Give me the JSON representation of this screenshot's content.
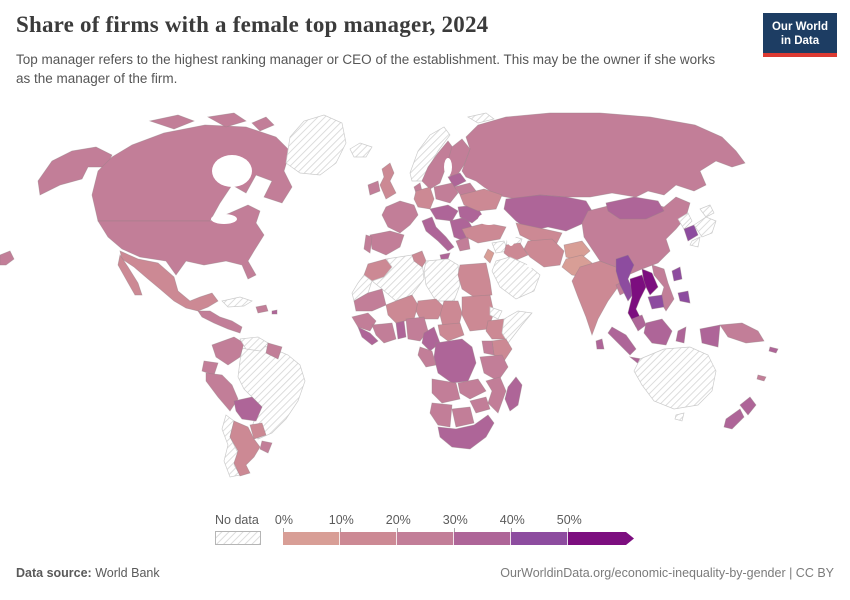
{
  "header": {
    "title": "Share of firms with a female top manager, 2024",
    "subtitle": "Top manager refers to the highest ranking manager or CEO of the establishment. This may be the owner if she works as the manager of the firm.",
    "logo": {
      "line1": "Our World",
      "line2": "in Data",
      "bg_color": "#1d3d63",
      "accent_color": "#dc3a32"
    }
  },
  "legend": {
    "no_data_label": "No data",
    "tick_labels": [
      "0%",
      "10%",
      "20%",
      "30%",
      "40%",
      "50%"
    ],
    "bin_colors": [
      "#d89e96",
      "#cc8994",
      "#c27e98",
      "#ae6598",
      "#8d4c9f",
      "#7c0e7f"
    ]
  },
  "footer": {
    "source_label": "Data source:",
    "source_value": "World Bank",
    "credit": "OurWorldinData.org/economic-inequality-by-gender | CC BY"
  },
  "map": {
    "border_color": "#9b8288",
    "no_data_border_color": "#c9c9c9",
    "ocean_color": "#ffffff",
    "regions": {
      "alaska": 2,
      "canada": 2,
      "arctic-island-1": 2,
      "arctic-island-2": 2,
      "arctic-island-3": 2,
      "greenland": "nd",
      "usa": 2,
      "mexico": 1,
      "baja": 1,
      "central-america": 2,
      "cuba": "nd",
      "hispaniola": 2,
      "puerto-rico": 3,
      "colombia": 2,
      "venezuela": "nd",
      "guyanas": 2,
      "ecuador": 2,
      "brazil": "nd",
      "peru": 2,
      "bolivia": 3,
      "paraguay": 1,
      "chile": "nd",
      "argentina": 1,
      "uruguay": 2,
      "chukotka-sliver": 2,
      "svalbard": "nd",
      "iceland": "nd",
      "ireland": 2,
      "uk": 1,
      "norway": "nd",
      "sweden": 2,
      "finland": 2,
      "baltics": 3,
      "denmark": 2,
      "belarus": 2,
      "russia": 2,
      "germany": 1,
      "poland": 2,
      "france": 2,
      "spain": 2,
      "portugal": 2,
      "czech-austria": 3,
      "italy": 3,
      "sicily": 3,
      "balkans": 3,
      "greece": 2,
      "romania": 3,
      "ukraine": 1,
      "kazakhstan": 3,
      "central-asia": 1,
      "turkmenistan": "nd",
      "turkey": 1,
      "syria": "nd",
      "israel-jordan": 0,
      "iraq": 1,
      "iran": 1,
      "arabia": "nd",
      "afghanistan": 0,
      "pakistan": 0,
      "india": 1,
      "bangladesh": 2,
      "sri-lanka": 3,
      "china": 2,
      "mongolia": 3,
      "north-korea": "nd",
      "south-korea": 4,
      "japan": "nd",
      "myanmar": 4,
      "thailand": 5,
      "laos": 5,
      "vietnam": 2,
      "cambodia": 4,
      "malaysia": 3,
      "sumatra": 3,
      "java": 3,
      "borneo": 3,
      "sulawesi": 3,
      "philippines": 4,
      "papua-west": 3,
      "png": 2,
      "solomons": 3,
      "new-caledonia": 2,
      "australia": "nd",
      "tasmania": "nd",
      "new-zealand": 3,
      "morocco": 1,
      "western-sahara": "nd",
      "algeria": "nd",
      "tunisia": 1,
      "libya": "nd",
      "egypt": 1,
      "mauritania": 2,
      "mali": 1,
      "niger": 1,
      "chad": 1,
      "sudan": 1,
      "eritrea": "nd",
      "ethiopia": 1,
      "somalia": "nd",
      "kenya": 1,
      "uganda": 2,
      "senegal-guinea": 2,
      "sierra-liberia": 3,
      "ivory-ghana": 2,
      "togo-benin": 3,
      "nigeria": 2,
      "cameroon": 3,
      "car": 1,
      "gabon-congo": 2,
      "drc": 3,
      "tanzania": 2,
      "angola": 2,
      "zambia": 2,
      "mozambique": 2,
      "zimbabwe": 2,
      "namibia": 2,
      "botswana": 2,
      "south-africa": 3,
      "madagascar": 3
    }
  },
  "chart_data": {
    "type": "heatmap",
    "subtype": "world-choropleth",
    "title": "Share of firms with a female top manager, 2024",
    "unit": "%",
    "legend_position": "bottom",
    "bins": [
      "0-10%",
      "10-20%",
      "20-30%",
      "30-40%",
      "40-50%",
      "50%+",
      "No data"
    ],
    "bin_colors": [
      "#d89e96",
      "#cc8994",
      "#c27e98",
      "#ae6598",
      "#8d4c9f",
      "#7c0e7f",
      "hatched-white"
    ],
    "regions_by_bin": {
      "0-10%": [
        "Afghanistan",
        "Pakistan",
        "Jordan"
      ],
      "10-20%": [
        "Mexico",
        "Argentina",
        "Paraguay",
        "United Kingdom",
        "Germany",
        "Ukraine",
        "Turkey",
        "Iraq",
        "Iran",
        "India",
        "Morocco",
        "Tunisia",
        "Egypt",
        "Mali",
        "Niger",
        "Chad",
        "Sudan",
        "Ethiopia",
        "Kenya",
        "Central African Republic",
        "Central Asia"
      ],
      "20-30%": [
        "United States",
        "Canada",
        "Russia",
        "China",
        "France",
        "Spain",
        "Portugal",
        "Ireland",
        "Sweden",
        "Finland",
        "Poland",
        "Belarus",
        "Greece",
        "Colombia",
        "Ecuador",
        "Peru",
        "Uruguay",
        "Guyana",
        "Vietnam",
        "Papua New Guinea",
        "Nigeria",
        "Ghana",
        "Cote d'Ivoire",
        "Senegal",
        "Mauritania",
        "Uganda",
        "Tanzania",
        "Angola",
        "Zambia",
        "Zimbabwe",
        "Mozambique",
        "Namibia",
        "Botswana",
        "Central America",
        "Dominican Republic"
      ],
      "30-40%": [
        "Kazakhstan",
        "Mongolia",
        "Italy",
        "Baltic states",
        "Romania",
        "Bulgaria",
        "Balkans",
        "Bolivia",
        "Cameroon",
        "Democratic Republic of Congo",
        "South Africa",
        "Madagascar",
        "Malaysia",
        "Indonesia",
        "Sri Lanka",
        "New Zealand",
        "Sierra Leone",
        "Liberia"
      ],
      "40-50%": [
        "South Korea",
        "Myanmar",
        "Cambodia",
        "Philippines"
      ],
      "50%+": [
        "Thailand",
        "Laos"
      ],
      "No data": [
        "Greenland",
        "Iceland",
        "Norway",
        "Brazil",
        "Chile",
        "Venezuela",
        "Cuba",
        "Algeria",
        "Libya",
        "Western Sahara",
        "Saudi Arabia",
        "Yemen",
        "Oman",
        "Syria",
        "Somalia",
        "Eritrea",
        "Turkmenistan",
        "Japan",
        "North Korea",
        "Australia"
      ]
    }
  }
}
